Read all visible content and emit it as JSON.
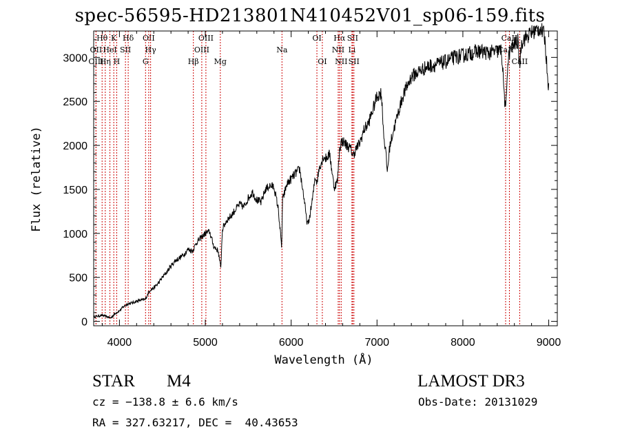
{
  "title": "spec-56595-HD213801N410452V01_sp06-159.fits",
  "info": {
    "class": "STAR",
    "subclass": "M4",
    "survey": "LAMOST DR3",
    "cz": "cz = −138.8 ± 6.6 km/s",
    "obs_date": "Obs-Date: 20131029",
    "radec": "RA = 327.63217, DEC =  40.43653"
  },
  "colors": {
    "spectrum": "#000000",
    "line_marker": "#cc0000",
    "axis": "#000000"
  },
  "chart_data": {
    "type": "line",
    "title": "spec-56595-HD213801N410452V01_sp06-159.fits",
    "xlabel": "Wavelength (Å)",
    "ylabel": "Flux (relative)",
    "xlim": [
      3700,
      9100
    ],
    "ylim": [
      -50,
      3300
    ],
    "xticks": [
      4000,
      5000,
      6000,
      7000,
      8000,
      9000
    ],
    "yticks": [
      0,
      500,
      1000,
      1500,
      2000,
      2500,
      3000
    ],
    "series": [
      {
        "name": "spectrum",
        "x": [
          3700,
          3800,
          3900,
          3950,
          4000,
          4050,
          4100,
          4150,
          4200,
          4250,
          4300,
          4340,
          4360,
          4400,
          4450,
          4500,
          4550,
          4600,
          4650,
          4700,
          4750,
          4800,
          4850,
          4900,
          4950,
          5000,
          5050,
          5100,
          5150,
          5180,
          5200,
          5250,
          5300,
          5350,
          5400,
          5450,
          5500,
          5550,
          5600,
          5650,
          5700,
          5750,
          5800,
          5850,
          5890,
          5895,
          5900,
          5950,
          6000,
          6050,
          6100,
          6150,
          6180,
          6200,
          6250,
          6280,
          6300,
          6330,
          6350,
          6380,
          6400,
          6450,
          6500,
          6540,
          6563,
          6580,
          6600,
          6650,
          6700,
          6720,
          6750,
          6800,
          6850,
          6900,
          6950,
          7000,
          7050,
          7080,
          7100,
          7120,
          7150,
          7200,
          7250,
          7300,
          7400,
          7500,
          7600,
          7700,
          7800,
          7900,
          8000,
          8100,
          8200,
          8300,
          8400,
          8450,
          8498,
          8520,
          8542,
          8560,
          8600,
          8640,
          8662,
          8680,
          8700,
          8800,
          8900,
          8950,
          9000
        ],
        "y": [
          50,
          70,
          40,
          90,
          120,
          170,
          200,
          210,
          230,
          240,
          250,
          330,
          360,
          380,
          430,
          500,
          560,
          630,
          690,
          720,
          760,
          820,
          800,
          900,
          950,
          1000,
          1020,
          850,
          800,
          600,
          1050,
          1150,
          1200,
          1270,
          1330,
          1300,
          1400,
          1470,
          1380,
          1350,
          1500,
          1540,
          1530,
          1280,
          830,
          1150,
          1380,
          1560,
          1620,
          1680,
          1730,
          1400,
          1150,
          1100,
          1400,
          1650,
          1580,
          1760,
          1800,
          1880,
          1850,
          1900,
          1520,
          1600,
          1950,
          2030,
          2050,
          2000,
          1950,
          1880,
          1950,
          2030,
          2180,
          2250,
          2400,
          2560,
          2600,
          2100,
          1950,
          1700,
          2000,
          2200,
          2380,
          2560,
          2780,
          2850,
          2900,
          2920,
          2950,
          3000,
          3020,
          3050,
          3070,
          3050,
          3070,
          3080,
          2350,
          2900,
          3050,
          3100,
          3150,
          3180,
          2900,
          3150,
          3200,
          3280,
          3330,
          3250,
          2650
        ]
      }
    ],
    "line_markers": [
      {
        "label": "Hθ",
        "x": 3798,
        "row": 0
      },
      {
        "label": "K",
        "x": 3934,
        "row": 0
      },
      {
        "label": "Hδ",
        "x": 4102,
        "row": 0
      },
      {
        "label": "OII",
        "x": 4341,
        "row": 0
      },
      {
        "label": "OIII",
        "x": 5007,
        "row": 0
      },
      {
        "label": "OI",
        "x": 6300,
        "row": 0
      },
      {
        "label": "Hα",
        "x": 6563,
        "row": 0
      },
      {
        "label": "SII",
        "x": 6716,
        "row": 0
      },
      {
        "label": "CaII",
        "x": 8542,
        "row": 0
      },
      {
        "label": "OII",
        "x": 3727,
        "row": 1
      },
      {
        "label": "HeI",
        "x": 3889,
        "row": 1
      },
      {
        "label": "SII",
        "x": 4070,
        "row": 1
      },
      {
        "label": "Hγ",
        "x": 4363,
        "row": 1
      },
      {
        "label": "OIII",
        "x": 4959,
        "row": 1
      },
      {
        "label": "Na",
        "x": 5893,
        "row": 1
      },
      {
        "label": "NII",
        "x": 6548,
        "row": 1
      },
      {
        "label": "Li",
        "x": 6708,
        "row": 1
      },
      {
        "label": "CaII",
        "x": 8498,
        "row": 1
      },
      {
        "label": "OIII",
        "x": 3727,
        "row": 2
      },
      {
        "label": "Hη",
        "x": 3835,
        "row": 2
      },
      {
        "label": "H",
        "x": 3968,
        "row": 2
      },
      {
        "label": "G",
        "x": 4304,
        "row": 2
      },
      {
        "label": "Hβ",
        "x": 4861,
        "row": 2
      },
      {
        "label": "Mg",
        "x": 5175,
        "row": 2
      },
      {
        "label": "OI",
        "x": 6363,
        "row": 2
      },
      {
        "label": "NII",
        "x": 6583,
        "row": 2
      },
      {
        "label": "SII",
        "x": 6731,
        "row": 2
      },
      {
        "label": "CaII",
        "x": 8662,
        "row": 2
      }
    ]
  }
}
